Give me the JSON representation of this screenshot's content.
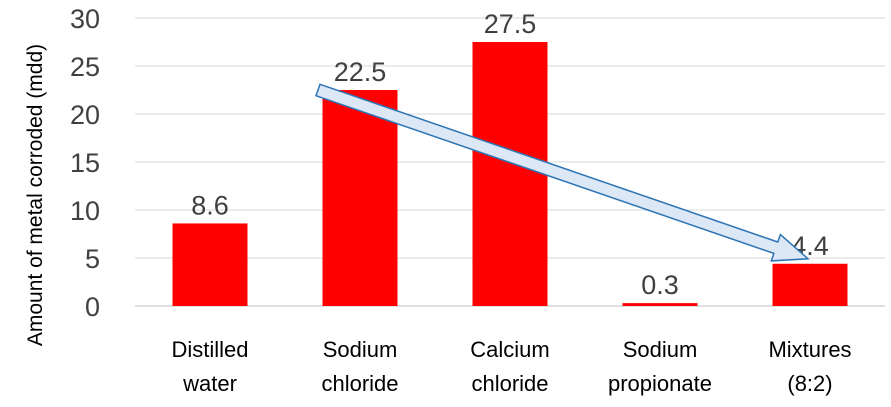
{
  "chart_data": {
    "type": "bar",
    "title": "",
    "xlabel": "",
    "ylabel": "Amount of metal corroded (mdd)",
    "ylim": [
      0,
      30
    ],
    "yticks": [
      0,
      5,
      10,
      15,
      20,
      25,
      30
    ],
    "grid": true,
    "legend": "none",
    "categories": [
      [
        "Distilled",
        "water"
      ],
      [
        "Sodium",
        "chloride"
      ],
      [
        "Calcium",
        "chloride"
      ],
      [
        "Sodium",
        "propionate"
      ],
      [
        "Mixtures",
        "(8:2)"
      ]
    ],
    "values": [
      8.6,
      22.5,
      27.5,
      0.3,
      4.4
    ],
    "data_labels": [
      "8.6",
      "22.5",
      "27.5",
      "0.3",
      "4.4"
    ],
    "annotations": [
      {
        "type": "arrow",
        "from_category": 1,
        "from_value": 22.5,
        "to_category": 4,
        "to_value": 4.4
      }
    ],
    "colors": {
      "bar": "#ff0000",
      "grid": "#d9d9d9",
      "arrow_fill": "#dce8f5",
      "arrow_stroke": "#2e75b6"
    }
  }
}
